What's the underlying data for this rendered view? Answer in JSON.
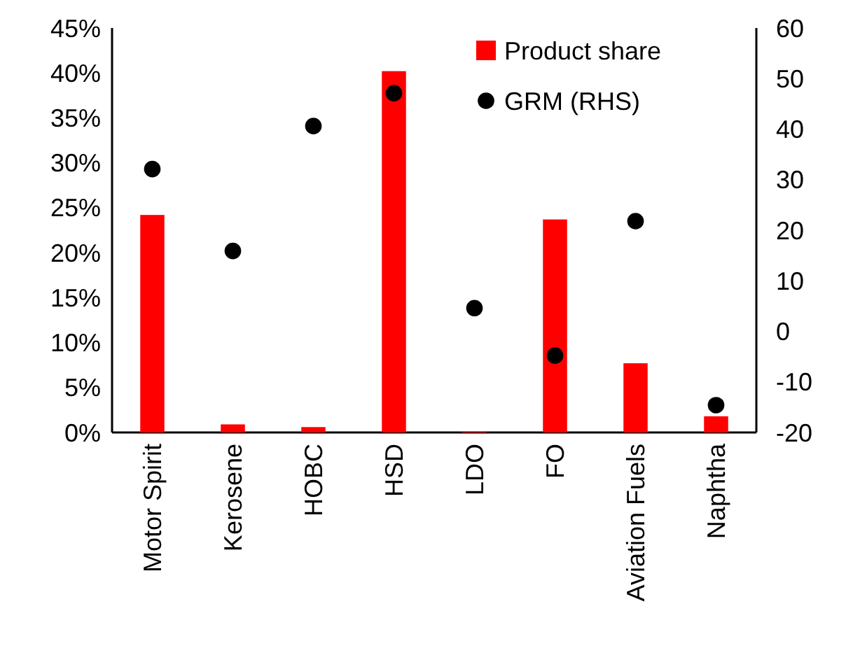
{
  "chart_data": {
    "type": "bar",
    "categories": [
      "Motor Spirit",
      "Kerosene",
      "HOBC",
      "HSD",
      "LDO",
      "FO",
      "Aviation Fuels",
      "Naphtha"
    ],
    "series": [
      {
        "name": "Product share",
        "color": "#ff0000",
        "values": [
          24.2,
          0.9,
          0.6,
          40.2,
          0.1,
          23.7,
          7.7,
          1.8
        ]
      },
      {
        "name": "GRM (RHS)",
        "type": "scatter",
        "color": "#000000",
        "axis": "y2",
        "values": [
          32.1,
          15.9,
          40.6,
          47.1,
          4.6,
          -4.8,
          21.8,
          -14.6
        ]
      }
    ],
    "ylim": [
      0,
      45
    ],
    "yticks": [
      {
        "value": 0,
        "label": "0%"
      },
      {
        "value": 5,
        "label": "5%"
      },
      {
        "value": 10,
        "label": "10%"
      },
      {
        "value": 15,
        "label": "15%"
      },
      {
        "value": 20,
        "label": "20%"
      },
      {
        "value": 25,
        "label": "25%"
      },
      {
        "value": 30,
        "label": "30%"
      },
      {
        "value": 35,
        "label": "35%"
      },
      {
        "value": 40,
        "label": "40%"
      },
      {
        "value": 45,
        "label": "45%"
      }
    ],
    "y2lim": [
      -20,
      60
    ],
    "y2ticks": [
      -20,
      -10,
      0,
      10,
      20,
      30,
      40,
      50,
      60
    ],
    "marker": "circle",
    "grid": false,
    "legend": "top right"
  }
}
